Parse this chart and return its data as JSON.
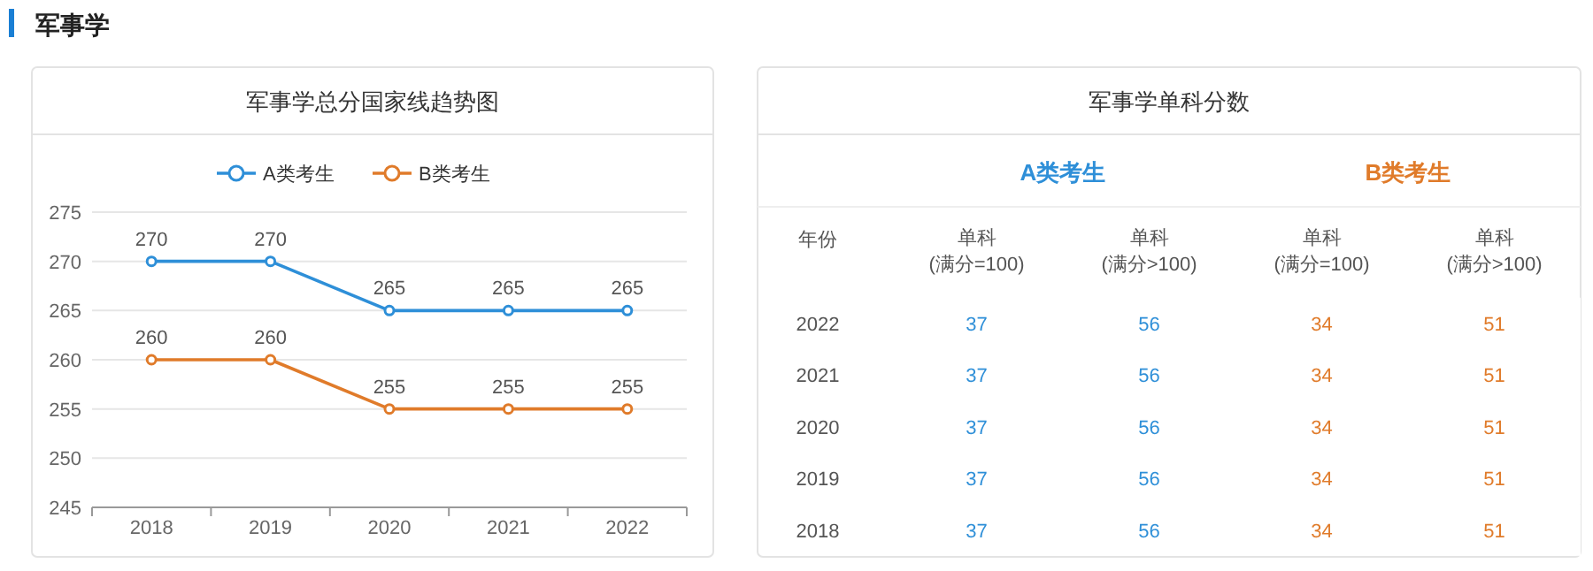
{
  "chart_data": [
    {
      "type": "line",
      "title": "军事学总分国家线趋势图",
      "annotations": [
        "军事学"
      ],
      "categories": [
        "2018",
        "2019",
        "2020",
        "2021",
        "2022"
      ],
      "series": [
        {
          "name": "A类考生",
          "color": "#2e8fd8",
          "values": [
            270,
            270,
            265,
            265,
            265
          ]
        },
        {
          "name": "B类考生",
          "color": "#e07b2a",
          "values": [
            260,
            260,
            255,
            255,
            255
          ]
        }
      ],
      "ylim": [
        245,
        275
      ],
      "yticks": [
        245,
        250,
        255,
        260,
        265,
        270,
        275
      ],
      "grid": "y",
      "legend": "top",
      "marker": "circle",
      "data_labels": true
    },
    {
      "type": "heatmap",
      "title": "军事学单科分数",
      "ylabel": "年份",
      "annotations": [
        "A类考生",
        "B类考生"
      ],
      "categories": [
        "单科\n(满分=100)",
        "单科\n(满分>100)",
        "单科\n(满分=100)",
        "单科\n(满分>100)"
      ],
      "y_categories": [
        "2022",
        "2021",
        "2020",
        "2019",
        "2018"
      ],
      "colors": [
        "#2e8fd8",
        "#2e8fd8",
        "#e07b2a",
        "#e07b2a"
      ],
      "data_labels": true,
      "cells": [
        [
          37,
          56,
          34,
          51
        ],
        [
          37,
          56,
          34,
          51
        ],
        [
          37,
          56,
          34,
          51
        ],
        [
          37,
          56,
          34,
          51
        ],
        [
          37,
          56,
          34,
          51
        ]
      ]
    }
  ]
}
